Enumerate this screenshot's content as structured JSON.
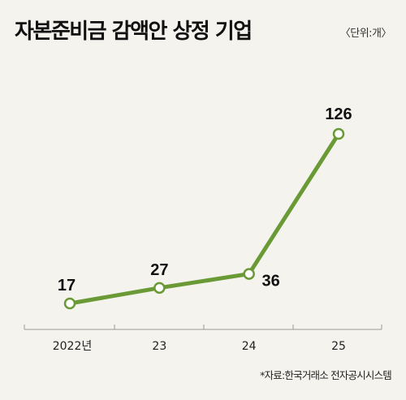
{
  "title": "자본준비금 감액안 상정 기업",
  "unit_label": "〈단위:개〉",
  "source": "*자료:한국거래소 전자공시시스템",
  "colors": {
    "line": "#6a9a35",
    "background": "#f5f3ee",
    "axis": "#9a9a9a"
  },
  "chart_data": {
    "type": "line",
    "title": "자본준비금 감액안 상정 기업",
    "xlabel": "",
    "ylabel": "",
    "categories": [
      "2022년",
      "23",
      "24",
      "25"
    ],
    "series": [
      {
        "name": "",
        "values": [
          17,
          27,
          36,
          126
        ]
      }
    ],
    "ylim": [
      0,
      140
    ],
    "grid": false,
    "legend": "none"
  }
}
